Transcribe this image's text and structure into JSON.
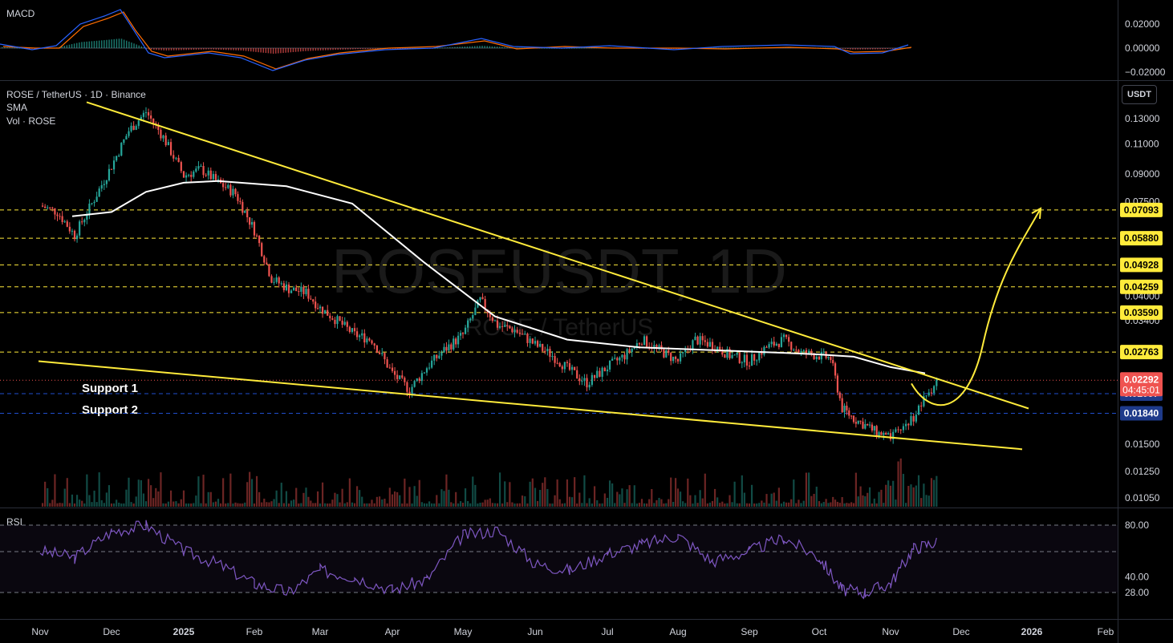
{
  "header": {
    "title": "ROSE / TetherUS · 1D · Binance",
    "indicator_sma": "SMA",
    "indicator_vol": "Vol · ROSE",
    "macd_label": "MACD",
    "rsi_label": "RSI",
    "currency_button": "USDT"
  },
  "watermark": {
    "symbol": "ROSEUSDT, 1D",
    "name": "ROSE / TetherUS"
  },
  "annotations": {
    "support1": "Support 1",
    "support2": "Support 2"
  },
  "colors": {
    "background": "#000000",
    "up": "#26a69a",
    "down": "#ef5350",
    "trendline": "#ffeb3b",
    "sma": "#ffffff",
    "rsi": "#7e57c2",
    "macd": "#2962ff",
    "signal": "#ff6d00",
    "last_price_badge": "#ef5350",
    "support_badge": "#1e3a8a"
  },
  "chart_data": {
    "type": "candlestick",
    "symbol": "ROSE / TetherUS",
    "timeframe": "1D",
    "exchange": "Binance",
    "x_axis_labels": [
      "Nov",
      "Dec",
      "2025",
      "Feb",
      "Mar",
      "Apr",
      "May",
      "Jun",
      "Jul",
      "Aug",
      "Sep",
      "Oct",
      "Nov",
      "Dec",
      "2026",
      "Feb"
    ],
    "price_axis_ticks": [
      "0.13000",
      "0.11000",
      "0.09000",
      "0.07500",
      "0.04000",
      "0.03400",
      "0.01500",
      "0.01250",
      "0.01050"
    ],
    "key_levels": [
      {
        "price": "0.07093",
        "style": "dashed",
        "color": "#ffeb3b"
      },
      {
        "price": "0.05880",
        "style": "dashed",
        "color": "#ffeb3b"
      },
      {
        "price": "0.04928",
        "style": "dashed",
        "color": "#ffeb3b"
      },
      {
        "price": "0.04259",
        "style": "dashed",
        "color": "#ffeb3b"
      },
      {
        "price": "0.03590",
        "style": "dashed",
        "color": "#ffeb3b"
      },
      {
        "price": "0.02763",
        "style": "dashed",
        "color": "#ffeb3b"
      },
      {
        "price": "0.02097",
        "style": "dashed",
        "color": "#2962ff",
        "label": "Support 1"
      },
      {
        "price": "0.01840",
        "style": "dashed",
        "color": "#2962ff",
        "label": "Support 2"
      }
    ],
    "last_price": "0.02292",
    "countdown": "04:45:01",
    "close_path": [
      [
        "Nov",
        0.073
      ],
      [
        "Nov",
        0.07
      ],
      [
        "Nov",
        0.06
      ],
      [
        "Nov",
        0.074
      ],
      [
        "Dec",
        0.095
      ],
      [
        "Dec",
        0.12
      ],
      [
        "Dec",
        0.136
      ],
      [
        "Dec",
        0.115
      ],
      [
        "2025",
        0.089
      ],
      [
        "2025",
        0.093
      ],
      [
        "2025",
        0.085
      ],
      [
        "2025",
        0.079
      ],
      [
        "Feb",
        0.062
      ],
      [
        "Feb",
        0.045
      ],
      [
        "Feb",
        0.042
      ],
      [
        "Feb",
        0.041
      ],
      [
        "Mar",
        0.037
      ],
      [
        "Mar",
        0.034
      ],
      [
        "Mar",
        0.031
      ],
      [
        "Mar",
        0.03
      ],
      [
        "Apr",
        0.024
      ],
      [
        "Apr",
        0.0215
      ],
      [
        "Apr",
        0.025
      ],
      [
        "Apr",
        0.028
      ],
      [
        "May",
        0.031
      ],
      [
        "May",
        0.039
      ],
      [
        "May",
        0.033
      ],
      [
        "May",
        0.032
      ],
      [
        "Jun",
        0.029
      ],
      [
        "Jun",
        0.027
      ],
      [
        "Jun",
        0.0245
      ],
      [
        "Jun",
        0.0225
      ],
      [
        "Jul",
        0.025
      ],
      [
        "Jul",
        0.027
      ],
      [
        "Jul",
        0.03
      ],
      [
        "Jul",
        0.028
      ],
      [
        "Aug",
        0.026
      ],
      [
        "Aug",
        0.03
      ],
      [
        "Aug",
        0.029
      ],
      [
        "Aug",
        0.027
      ],
      [
        "Sep",
        0.026
      ],
      [
        "Sep",
        0.0285
      ],
      [
        "Sep",
        0.03
      ],
      [
        "Sep",
        0.0275
      ],
      [
        "Oct",
        0.027
      ],
      [
        "Oct",
        0.0265
      ],
      [
        "Oct",
        0.019
      ],
      [
        "Oct",
        0.0178
      ],
      [
        "Oct",
        0.017
      ],
      [
        "Oct",
        0.0162
      ],
      [
        "Nov",
        0.0155
      ],
      [
        "Nov",
        0.018
      ],
      [
        "Nov",
        0.0229
      ]
    ],
    "sma_path": [
      [
        "Nov",
        0.068
      ],
      [
        "Dec",
        0.07
      ],
      [
        "Dec",
        0.08
      ],
      [
        "2025",
        0.085
      ],
      [
        "2025",
        0.086
      ],
      [
        "Feb",
        0.083
      ],
      [
        "Mar",
        0.074
      ],
      [
        "Apr",
        0.05
      ],
      [
        "May",
        0.035
      ],
      [
        "Jun",
        0.03
      ],
      [
        "Jul",
        0.0285
      ],
      [
        "Aug",
        0.028
      ],
      [
        "Sep",
        0.0275
      ],
      [
        "Oct",
        0.0272
      ],
      [
        "Oct",
        0.0268
      ],
      [
        "Nov",
        0.025
      ],
      [
        "Nov",
        0.024
      ]
    ],
    "trendlines": [
      {
        "name": "upper",
        "color": "#ffeb3b",
        "from": [
          "Nov",
          0.145
        ],
        "to": [
          "Dec",
          0.019
        ]
      },
      {
        "name": "lower",
        "color": "#ffeb3b",
        "from": [
          "Nov",
          0.026
        ],
        "to": [
          "Dec",
          0.0145
        ]
      }
    ],
    "projection_arrow": {
      "color": "#ffeb3b",
      "from": [
        "Nov",
        0.0229
      ],
      "to": [
        "Dec",
        0.0709
      ]
    },
    "macd_axis_ticks": [
      "0.02000",
      "0.00000",
      "−0.02000"
    ],
    "rsi_axis_ticks": [
      "80.00",
      "40.00",
      "28.00"
    ],
    "rsi_path": [
      [
        "Nov",
        60
      ],
      [
        "Nov",
        55
      ],
      [
        "Dec",
        75
      ],
      [
        "Dec",
        80
      ],
      [
        "2025",
        60
      ],
      [
        "2025",
        50
      ],
      [
        "Feb",
        35
      ],
      [
        "Feb",
        28
      ],
      [
        "Mar",
        45
      ],
      [
        "Mar",
        40
      ],
      [
        "Apr",
        30
      ],
      [
        "Apr",
        38
      ],
      [
        "May",
        72
      ],
      [
        "May",
        76
      ],
      [
        "Jun",
        50
      ],
      [
        "Jun",
        45
      ],
      [
        "Jul",
        58
      ],
      [
        "Jul",
        65
      ],
      [
        "Aug",
        72
      ],
      [
        "Aug",
        52
      ],
      [
        "Sep",
        60
      ],
      [
        "Sep",
        70
      ],
      [
        "Oct",
        55
      ],
      [
        "Oct",
        30
      ],
      [
        "Oct",
        28
      ],
      [
        "Nov",
        35
      ],
      [
        "Nov",
        62
      ],
      [
        "Nov",
        67
      ]
    ]
  }
}
